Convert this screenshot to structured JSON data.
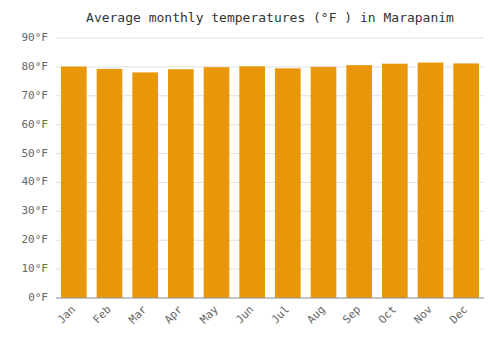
{
  "chart_data": {
    "type": "bar",
    "title": "Average monthly temperatures (°F ) in Marapanim",
    "categories": [
      "Jan",
      "Feb",
      "Mar",
      "Apr",
      "May",
      "Jun",
      "Jul",
      "Aug",
      "Sep",
      "Oct",
      "Nov",
      "Dec"
    ],
    "values": [
      80.1,
      79.3,
      78.1,
      79.2,
      79.9,
      80.2,
      79.5,
      80.0,
      80.6,
      81.1,
      81.5,
      81.2
    ],
    "color": "#E8960A",
    "ylim": [
      0,
      90
    ],
    "yticks": [
      {
        "value": 0,
        "label": "0°F"
      },
      {
        "value": 10,
        "label": "10°F"
      },
      {
        "value": 20,
        "label": "20°F"
      },
      {
        "value": 30,
        "label": "30°F"
      },
      {
        "value": 40,
        "label": "40°F"
      },
      {
        "value": 50,
        "label": "50°F"
      },
      {
        "value": 60,
        "label": "60°F"
      },
      {
        "value": 70,
        "label": "70°F"
      },
      {
        "value": 80,
        "label": "80°F"
      },
      {
        "value": 90,
        "label": "90°F"
      }
    ],
    "grid": true
  }
}
